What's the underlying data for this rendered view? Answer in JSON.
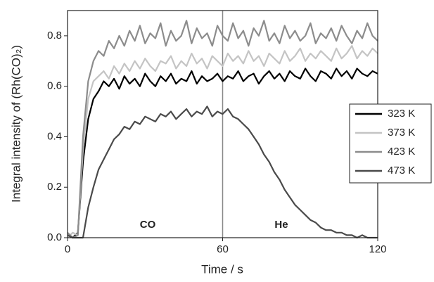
{
  "chart_data": {
    "type": "line",
    "xlabel": "Time / s",
    "ylabel": "Integral intensity of (Rh(CO)₂)",
    "annotations": [
      "CO",
      "He"
    ],
    "vlines": [
      60
    ],
    "xlim": [
      0,
      120
    ],
    "ylim": [
      0,
      0.9
    ],
    "xticks": [
      0,
      60,
      120
    ],
    "yticks": [
      {
        "value": 0,
        "label": "0.0"
      },
      0.2,
      0.4,
      0.6,
      0.8
    ],
    "legend": "right",
    "x": [
      0,
      2,
      4,
      6,
      8,
      10,
      12,
      14,
      16,
      18,
      20,
      22,
      24,
      26,
      28,
      30,
      32,
      34,
      36,
      38,
      40,
      42,
      44,
      46,
      48,
      50,
      52,
      54,
      56,
      58,
      60,
      62,
      64,
      66,
      68,
      70,
      72,
      74,
      76,
      78,
      80,
      82,
      84,
      86,
      88,
      90,
      92,
      94,
      96,
      98,
      100,
      102,
      104,
      106,
      108,
      110,
      112,
      114,
      116,
      118,
      120
    ],
    "series": [
      {
        "name": "323 K",
        "color": "#000000",
        "values": [
          0.01,
          0.0,
          0.02,
          0.3,
          0.47,
          0.55,
          0.58,
          0.62,
          0.6,
          0.63,
          0.59,
          0.64,
          0.61,
          0.63,
          0.6,
          0.65,
          0.62,
          0.6,
          0.64,
          0.62,
          0.65,
          0.61,
          0.63,
          0.62,
          0.66,
          0.61,
          0.64,
          0.62,
          0.63,
          0.65,
          0.62,
          0.64,
          0.63,
          0.66,
          0.62,
          0.64,
          0.65,
          0.61,
          0.64,
          0.66,
          0.63,
          0.65,
          0.62,
          0.66,
          0.64,
          0.63,
          0.67,
          0.64,
          0.62,
          0.66,
          0.65,
          0.63,
          0.67,
          0.64,
          0.66,
          0.63,
          0.67,
          0.65,
          0.64,
          0.66,
          0.65
        ]
      },
      {
        "name": "373 K",
        "color": "#c4c4c4",
        "values": [
          0.0,
          0.02,
          0.01,
          0.35,
          0.55,
          0.62,
          0.64,
          0.66,
          0.63,
          0.68,
          0.65,
          0.69,
          0.66,
          0.7,
          0.67,
          0.71,
          0.68,
          0.66,
          0.7,
          0.69,
          0.72,
          0.67,
          0.7,
          0.68,
          0.73,
          0.69,
          0.71,
          0.67,
          0.72,
          0.7,
          0.68,
          0.73,
          0.7,
          0.72,
          0.69,
          0.74,
          0.7,
          0.72,
          0.68,
          0.73,
          0.71,
          0.69,
          0.74,
          0.7,
          0.72,
          0.75,
          0.7,
          0.73,
          0.71,
          0.74,
          0.72,
          0.7,
          0.75,
          0.71,
          0.73,
          0.76,
          0.71,
          0.74,
          0.72,
          0.75,
          0.73
        ]
      },
      {
        "name": "423 K",
        "color": "#8c8c8c",
        "values": [
          0.02,
          0.0,
          0.01,
          0.4,
          0.62,
          0.7,
          0.74,
          0.72,
          0.78,
          0.75,
          0.8,
          0.76,
          0.82,
          0.78,
          0.84,
          0.77,
          0.81,
          0.79,
          0.85,
          0.76,
          0.82,
          0.78,
          0.8,
          0.86,
          0.77,
          0.83,
          0.79,
          0.81,
          0.76,
          0.84,
          0.8,
          0.78,
          0.85,
          0.79,
          0.82,
          0.76,
          0.83,
          0.8,
          0.86,
          0.78,
          0.81,
          0.77,
          0.84,
          0.79,
          0.82,
          0.78,
          0.8,
          0.85,
          0.77,
          0.81,
          0.79,
          0.83,
          0.78,
          0.84,
          0.8,
          0.77,
          0.82,
          0.79,
          0.85,
          0.8,
          0.78
        ]
      },
      {
        "name": "473 K",
        "color": "#4a4a4a",
        "values": [
          0.01,
          0.0,
          0.0,
          0.0,
          0.12,
          0.2,
          0.27,
          0.31,
          0.35,
          0.39,
          0.41,
          0.44,
          0.43,
          0.46,
          0.45,
          0.48,
          0.47,
          0.46,
          0.49,
          0.48,
          0.5,
          0.47,
          0.49,
          0.51,
          0.48,
          0.5,
          0.49,
          0.52,
          0.48,
          0.5,
          0.49,
          0.51,
          0.48,
          0.47,
          0.45,
          0.43,
          0.4,
          0.37,
          0.33,
          0.3,
          0.26,
          0.23,
          0.19,
          0.16,
          0.13,
          0.11,
          0.09,
          0.07,
          0.06,
          0.04,
          0.03,
          0.03,
          0.02,
          0.02,
          0.01,
          0.01,
          0.0,
          0.01,
          0.0,
          0.0,
          0.0
        ]
      }
    ]
  }
}
